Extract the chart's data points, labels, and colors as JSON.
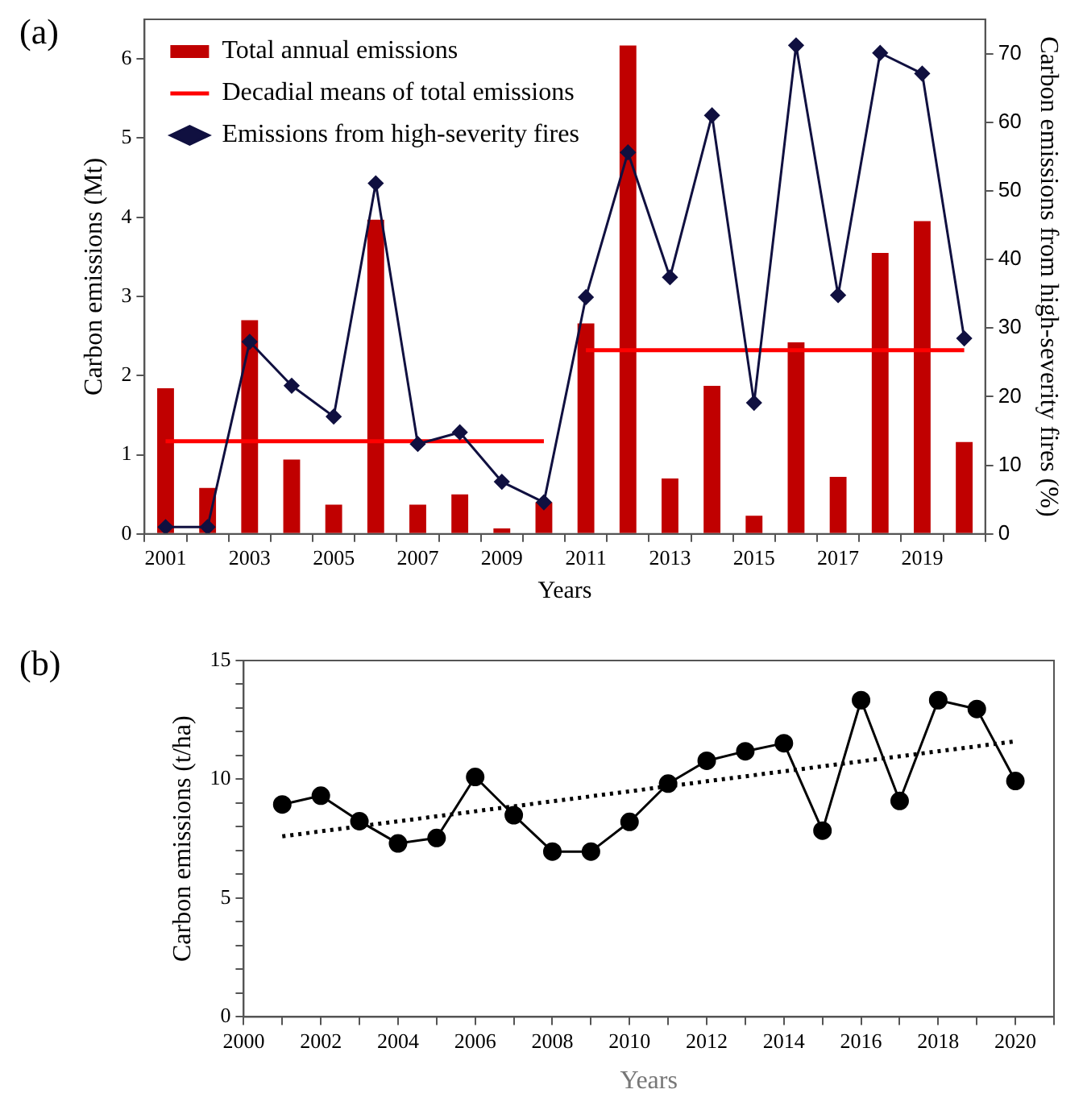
{
  "chart_data": [
    {
      "type": "bar",
      "xlabel": "Years",
      "ylabel": "Carbon emissions (Mt)",
      "y2label": "Carbon emissions from high-severity fires (%)",
      "categories": [
        "2001",
        null,
        "2003",
        null,
        "2005",
        null,
        "2007",
        null,
        "2009",
        null,
        "2011",
        null,
        "2013",
        null,
        "2015",
        null,
        "2017",
        null,
        "2019",
        null
      ],
      "series": [
        {
          "name": "Total annual emissions",
          "type": "bar",
          "color": "#c00000",
          "values": [
            1.84,
            0.58,
            2.7,
            0.94,
            0.37,
            3.97,
            0.37,
            0.5,
            0.07,
            0.4,
            2.66,
            6.17,
            0.7,
            1.87,
            0.23,
            2.42,
            0.72,
            3.55,
            3.95,
            1.16
          ]
        },
        {
          "name": "Decadial means of total emissions",
          "type": "line",
          "color": "#ff0000",
          "marker": "none",
          "values": [
            1.17,
            1.17,
            1.17,
            1.17,
            1.17,
            1.17,
            1.17,
            1.17,
            1.17,
            1.17,
            null,
            null,
            null,
            null,
            null,
            null,
            null,
            null,
            null,
            null
          ]
        },
        {
          "type": "line",
          "color": "#ff0000",
          "marker": "none",
          "values": [
            null,
            null,
            null,
            null,
            null,
            null,
            null,
            null,
            null,
            null,
            2.32,
            2.32,
            2.32,
            2.32,
            2.32,
            2.32,
            2.32,
            2.32,
            2.32,
            2.32
          ]
        },
        {
          "name": "Emissions from high-severity fires",
          "type": "line",
          "color": "#101040",
          "marker": "diamond",
          "axis": "y2",
          "values": [
            1.0,
            1.0,
            28.0,
            21.6,
            17.1,
            51.1,
            13.1,
            14.8,
            7.6,
            4.6,
            34.5,
            55.6,
            37.4,
            61.0,
            19.1,
            71.2,
            34.8,
            70.1,
            67.1,
            28.5
          ]
        }
      ],
      "ylim": [
        0,
        6.5
      ],
      "yticks": [
        0,
        1,
        2,
        3,
        4,
        5,
        6
      ],
      "y2lim": [
        0,
        75
      ],
      "y2ticks": [
        0,
        10,
        20,
        30,
        40,
        50,
        60,
        70
      ],
      "legend": "top left",
      "grid": false,
      "annotations": [
        "(a)"
      ]
    },
    {
      "type": "line",
      "xlabel": "Years",
      "ylabel": "Carbon emissions (t/ha)",
      "marker": "circle",
      "x": [
        2001,
        2002,
        2003,
        2004,
        2005,
        2006,
        2007,
        2008,
        2009,
        2010,
        2011,
        2012,
        2013,
        2014,
        2015,
        2016,
        2017,
        2018,
        2019,
        2020
      ],
      "series": [
        {
          "color": "#000000",
          "values": [
            8.94,
            9.31,
            8.24,
            7.3,
            7.53,
            10.1,
            8.49,
            6.96,
            6.96,
            8.21,
            9.82,
            10.78,
            11.18,
            11.52,
            7.84,
            13.33,
            9.09,
            13.33,
            12.96,
            9.93
          ]
        },
        {
          "type": "line",
          "color": "#000000",
          "x": [
            2001,
            2020
          ],
          "values": [
            7.6,
            11.6
          ],
          "marker": "none",
          "line_style": "dotted"
        }
      ],
      "xlim": [
        2000,
        2021
      ],
      "xticks": [
        2000,
        {
          "value": 2001,
          "label": null
        },
        2002,
        {
          "value": 2003,
          "label": null
        },
        2004,
        {
          "value": 2005,
          "label": null
        },
        2006,
        {
          "value": 2007,
          "label": null
        },
        2008,
        {
          "value": 2009,
          "label": null
        },
        2010,
        {
          "value": 2011,
          "label": null
        },
        2012,
        {
          "value": 2013,
          "label": null
        },
        2014,
        {
          "value": 2015,
          "label": null
        },
        2016,
        {
          "value": 2017,
          "label": null
        },
        2018,
        {
          "value": 2019,
          "label": null
        },
        2020,
        {
          "value": 2021,
          "label": null
        }
      ],
      "ylim": [
        0,
        15
      ],
      "yticks": [
        0,
        {
          "value": 1,
          "label": null
        },
        {
          "value": 2,
          "label": null
        },
        {
          "value": 3,
          "label": null
        },
        {
          "value": 4,
          "label": null
        },
        5,
        {
          "value": 6,
          "label": null
        },
        {
          "value": 7,
          "label": null
        },
        {
          "value": 8,
          "label": null
        },
        {
          "value": 9,
          "label": null
        },
        10,
        {
          "value": 11,
          "label": null
        },
        {
          "value": 12,
          "label": null
        },
        {
          "value": 13,
          "label": null
        },
        {
          "value": 14,
          "label": null
        },
        15
      ],
      "legend": false,
      "grid": false,
      "annotations": [
        "(b)"
      ]
    }
  ]
}
